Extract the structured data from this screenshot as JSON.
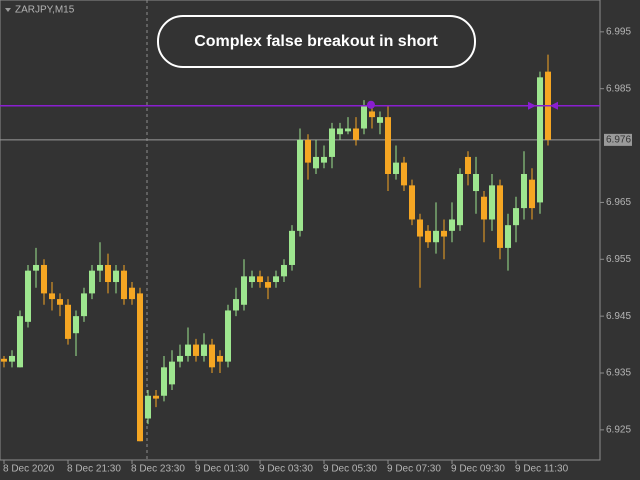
{
  "chart_data": {
    "type": "candlestick",
    "symbol": "ZARJPY,M15",
    "annotation": "Complex false breakout in short",
    "categories": [
      "8 Dec 2020",
      null,
      null,
      null,
      null,
      null,
      null,
      null,
      "8 Dec 21:30",
      null,
      null,
      null,
      null,
      null,
      null,
      null,
      "8 Dec 23:30",
      null,
      null,
      null,
      null,
      null,
      null,
      null,
      "9 Dec 01:30",
      null,
      null,
      null,
      null,
      null,
      null,
      null,
      "9 Dec 03:30",
      null,
      null,
      null,
      null,
      null,
      null,
      null,
      "9 Dec 05:30",
      null,
      null,
      null,
      null,
      null,
      null,
      null,
      "9 Dec 07:30",
      null,
      null,
      null,
      null,
      null,
      null,
      null,
      "9 Dec 09:30",
      null,
      null,
      null,
      null,
      null,
      null,
      null,
      "9 Dec 11:30",
      null,
      null,
      null,
      null
    ],
    "open": [
      6.9375,
      6.937,
      6.936,
      6.944,
      6.953,
      6.954,
      6.949,
      6.948,
      6.947,
      6.942,
      6.945,
      6.949,
      6.953,
      6.954,
      6.951,
      6.953,
      6.95,
      6.949,
      6.927,
      6.931,
      6.931,
      6.933,
      6.937,
      6.938,
      6.94,
      6.938,
      6.94,
      6.938,
      6.937,
      6.946,
      6.947,
      6.951,
      6.952,
      6.951,
      6.951,
      6.952,
      6.954,
      6.96,
      6.976,
      6.971,
      6.972,
      6.973,
      6.977,
      6.9775,
      6.978,
      6.978,
      6.981,
      6.979,
      6.98,
      6.97,
      6.972,
      6.968,
      6.962,
      6.96,
      6.958,
      6.96,
      6.96,
      6.961,
      6.973,
      6.967,
      6.966,
      6.962,
      6.968,
      6.957,
      6.961,
      6.964,
      6.969,
      6.965,
      6.988
    ],
    "high": [
      6.938,
      6.939,
      6.946,
      6.954,
      6.957,
      6.955,
      6.951,
      6.949,
      6.948,
      6.946,
      6.95,
      6.954,
      6.958,
      6.956,
      6.954,
      6.954,
      6.951,
      6.95,
      6.932,
      6.932,
      6.938,
      6.939,
      6.94,
      6.943,
      6.941,
      6.942,
      6.941,
      6.939,
      6.947,
      6.95,
      6.955,
      6.953,
      6.953,
      6.952,
      6.953,
      6.955,
      6.961,
      6.978,
      6.977,
      6.976,
      6.975,
      6.979,
      6.979,
      6.98,
      6.98,
      6.983,
      6.982,
      6.981,
      6.982,
      6.975,
      6.973,
      6.969,
      6.963,
      6.961,
      6.965,
      6.962,
      6.965,
      6.971,
      6.974,
      6.973,
      6.967,
      6.97,
      6.969,
      6.963,
      6.966,
      6.974,
      6.971,
      6.988,
      6.991
    ],
    "low": [
      6.936,
      6.936,
      6.936,
      6.943,
      6.95,
      6.947,
      6.946,
      6.945,
      6.94,
      6.938,
      6.944,
      6.948,
      6.951,
      6.949,
      6.949,
      6.947,
      6.947,
      6.923,
      6.926,
      6.929,
      6.93,
      6.932,
      6.936,
      6.937,
      6.937,
      6.937,
      6.935,
      6.935,
      6.936,
      6.945,
      6.946,
      6.95,
      6.95,
      6.948,
      6.95,
      6.951,
      6.953,
      6.959,
      6.969,
      6.97,
      6.971,
      6.971,
      6.976,
      6.977,
      6.975,
      6.977,
      6.978,
      6.977,
      6.967,
      6.969,
      6.967,
      6.961,
      6.95,
      6.957,
      6.956,
      6.955,
      6.958,
      6.96,
      6.968,
      6.963,
      6.958,
      6.96,
      6.955,
      6.953,
      6.958,
      6.962,
      6.962,
      6.963,
      6.975
    ],
    "close": [
      6.937,
      6.938,
      6.945,
      6.953,
      6.954,
      6.949,
      6.948,
      6.947,
      6.941,
      6.945,
      6.949,
      6.953,
      6.954,
      6.951,
      6.953,
      6.948,
      6.948,
      6.923,
      6.931,
      6.9305,
      6.936,
      6.937,
      6.938,
      6.94,
      6.938,
      6.94,
      6.936,
      6.937,
      6.946,
      6.948,
      6.952,
      6.952,
      6.951,
      6.95,
      6.952,
      6.954,
      6.96,
      6.976,
      6.972,
      6.973,
      6.973,
      6.978,
      6.978,
      6.978,
      6.976,
      6.982,
      6.98,
      6.98,
      6.97,
      6.972,
      6.968,
      6.962,
      6.959,
      6.958,
      6.96,
      6.959,
      6.962,
      6.97,
      6.97,
      6.97,
      6.962,
      6.968,
      6.957,
      6.961,
      6.964,
      6.97,
      6.964,
      6.987,
      6.976
    ],
    "up_color": "#9ee68f",
    "down_color": "#f5a623",
    "level": 6.982,
    "level_color": "#8a1fd0",
    "current_price": 6.976,
    "ylim": [
      6.9197,
      7.0006
    ],
    "yticks": [
      6.925,
      6.935,
      6.945,
      6.955,
      6.965,
      6.985,
      6.995
    ]
  }
}
